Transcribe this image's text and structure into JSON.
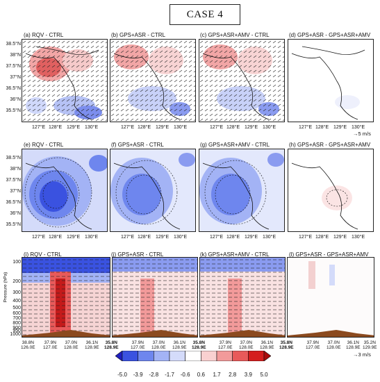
{
  "figure": {
    "title": "CASE 4",
    "row1": {
      "panels": [
        "(a) RQV - CTRL",
        "(b) GPS+ASR - CTRL",
        "(c) GPS+ASR+AMV - CTRL",
        "(d) GPS+ASR - GPS+ASR+AMV"
      ],
      "lat_labels": [
        "38.5°N",
        "38°N",
        "37.5°N",
        "37°N",
        "36.5°N",
        "36°N",
        "35.5°N"
      ],
      "lon_labels": [
        "127°E",
        "128°E",
        "129°E",
        "130°E"
      ],
      "vector_unit": "→5 m/s"
    },
    "row2": {
      "panels": [
        "(e) RQV - CTRL",
        "(f) GPS+ASR - CTRL",
        "(g) GPS+ASR+AMV - CTRL",
        "(h) GPS+ASR - GPS+ASR+AMV"
      ],
      "lat_labels": [
        "38.5°N",
        "38°N",
        "37.5°N",
        "37°N",
        "36.5°N",
        "36°N",
        "35.5°N"
      ],
      "lon_labels": [
        "127°E",
        "128°E",
        "129°E",
        "130°E"
      ]
    },
    "row3": {
      "panels": [
        "(i) RQV - CTRL",
        "(j) GPS+ASR - CTRL",
        "(k) GPS+ASR+AMV - CTRL",
        "(l) GPS+ASR - GPS+ASR+AMV"
      ],
      "ylabel": "Pressure (hPa)",
      "pressure_labels": [
        "100",
        "200",
        "300",
        "400",
        "500",
        "600",
        "700",
        "800",
        "900",
        "950",
        "1000"
      ],
      "x_labels_first": [
        "38.8N\n126.0E",
        "37.9N\n127.0E",
        "37.0N\n128.0E",
        "36.1N\n128.9E"
      ],
      "x_labels_between": [
        "35.8N\n128.9E",
        "35.8N\n128.9E",
        "35.8N\n128.9E"
      ],
      "x_labels_last": "35.2N\n129.9E",
      "vector_unit": "→3 m/s"
    },
    "colorbar": {
      "ticks": [
        "-5.0",
        "-3.9",
        "-2.8",
        "-1.7",
        "-0.6",
        "0.6",
        "1.7",
        "2.8",
        "3.9",
        "5.0"
      ],
      "colors": [
        "#1f1fbf",
        "#3a52e0",
        "#6e86ee",
        "#a3b3f5",
        "#d4dbfa",
        "#ffffff",
        "#f9d0d0",
        "#f29a9a",
        "#e85a5a",
        "#d41e1e",
        "#a80c0c"
      ]
    }
  }
}
